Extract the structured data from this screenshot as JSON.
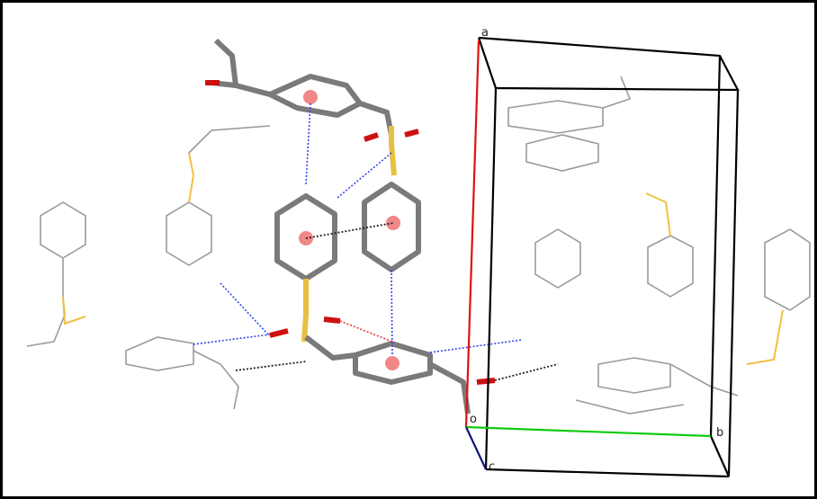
{
  "cell_axes": {
    "a": "a",
    "b": "b",
    "c": "c",
    "origin": "o"
  }
}
